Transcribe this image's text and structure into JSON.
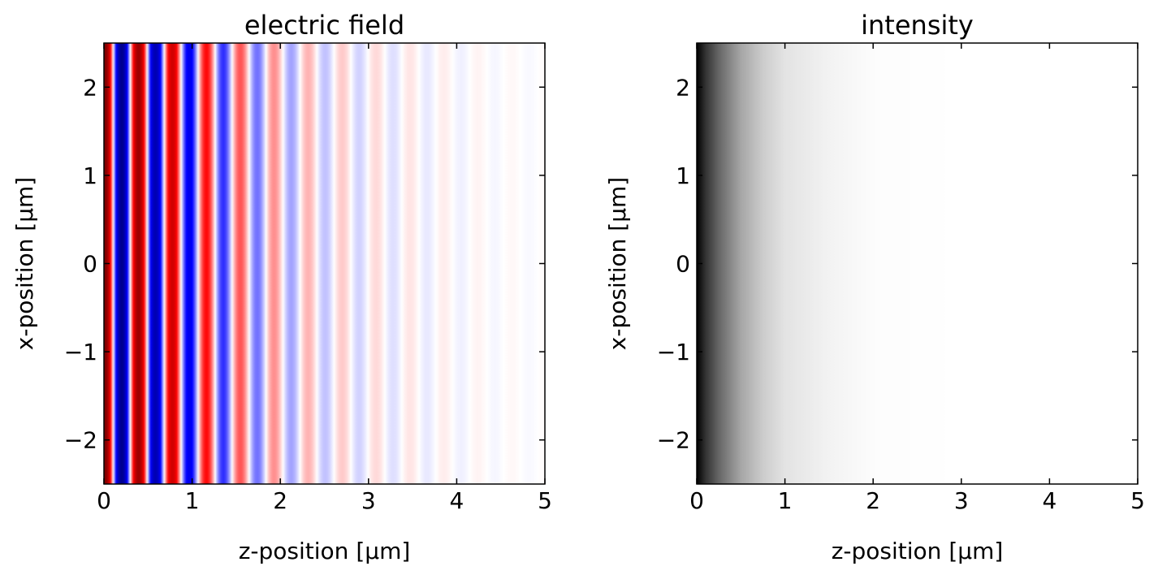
{
  "chart_data": [
    {
      "type": "heatmap",
      "title": "electric field",
      "xlabel": "z-position [µm]",
      "ylabel": "x-position [µm]",
      "xlim": [
        0,
        5
      ],
      "ylim": [
        -2.5,
        2.5
      ],
      "xticks": [
        0,
        1,
        2,
        3,
        4,
        5
      ],
      "yticks": [
        -2,
        -1,
        0,
        1,
        2
      ],
      "xtick_labels": [
        "0",
        "1",
        "2",
        "3",
        "4",
        "5"
      ],
      "ytick_labels": [
        "−2",
        "−1",
        "0",
        "1",
        "2"
      ],
      "colormap": "bwr",
      "field": {
        "description_free": true,
        "varies_along": "z",
        "uniform_along": "x",
        "period_um": 0.385,
        "phase_peak_um": 0.01,
        "decay_length_um": 1.2,
        "amplitude_profile": [
          {
            "z": 0.0,
            "amplitude": 1.0
          },
          {
            "z": 0.5,
            "amplitude": 0.85
          },
          {
            "z": 1.0,
            "amplitude": 0.55
          },
          {
            "z": 1.5,
            "amplitude": 0.35
          },
          {
            "z": 2.0,
            "amplitude": 0.2
          },
          {
            "z": 2.5,
            "amplitude": 0.12
          },
          {
            "z": 3.0,
            "amplitude": 0.08
          },
          {
            "z": 3.5,
            "amplitude": 0.05
          },
          {
            "z": 4.0,
            "amplitude": 0.03
          },
          {
            "z": 4.5,
            "amplitude": 0.015
          },
          {
            "z": 5.0,
            "amplitude": 0.01
          }
        ]
      },
      "colors": {
        "positive": "#ff0000",
        "negative": "#0000ff",
        "zero": "#ffffff",
        "dark_negative": "#00007f",
        "dark_positive": "#7f0000"
      }
    },
    {
      "type": "heatmap",
      "title": "intensity",
      "xlabel": "z-position [µm]",
      "ylabel": "x-position [µm]",
      "xlim": [
        0,
        5
      ],
      "ylim": [
        -2.5,
        2.5
      ],
      "xticks": [
        0,
        1,
        2,
        3,
        4,
        5
      ],
      "yticks": [
        -2,
        -1,
        0,
        1,
        2
      ],
      "xtick_labels": [
        "0",
        "1",
        "2",
        "3",
        "4",
        "5"
      ],
      "ytick_labels": [
        "−2",
        "−1",
        "0",
        "1",
        "2"
      ],
      "colormap": "gray_r",
      "intensity_profile": [
        {
          "z": 0.0,
          "intensity": 1.0
        },
        {
          "z": 0.1,
          "intensity": 0.8
        },
        {
          "z": 0.25,
          "intensity": 0.6
        },
        {
          "z": 0.5,
          "intensity": 0.35
        },
        {
          "z": 0.75,
          "intensity": 0.2
        },
        {
          "z": 1.0,
          "intensity": 0.11
        },
        {
          "z": 1.5,
          "intensity": 0.05
        },
        {
          "z": 2.0,
          "intensity": 0.01
        },
        {
          "z": 3.0,
          "intensity": 0.0
        },
        {
          "z": 5.0,
          "intensity": 0.0
        }
      ]
    }
  ]
}
